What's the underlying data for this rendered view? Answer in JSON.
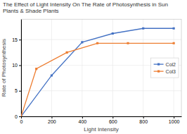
{
  "chart_data": {
    "type": "line",
    "title": "The Effect of Light Intensity On The Rate of Photosynthesis in Sun Plants & Shade Plants",
    "xlabel": "Light Intensity",
    "ylabel": "Rate of Photosynthesis",
    "series": [
      {
        "name": "Col2",
        "color": "#4472C4",
        "x": [
          0,
          200,
          400,
          600,
          800,
          1000
        ],
        "values": [
          0,
          8,
          14.5,
          16.2,
          17.2,
          17.2
        ]
      },
      {
        "name": "Col3",
        "color": "#ED7D31",
        "x": [
          0,
          100,
          300,
          500,
          700,
          1000
        ],
        "values": [
          0,
          9.3,
          12.5,
          14.3,
          14.3,
          14.3
        ]
      }
    ],
    "xlim": [
      0,
      1050
    ],
    "ylim": [
      0,
      19
    ],
    "xticks": [
      0,
      200,
      400,
      600,
      800,
      1000
    ],
    "yticks": [
      0,
      5,
      10,
      15
    ],
    "grid": true,
    "legend": "right",
    "marker": "square"
  }
}
